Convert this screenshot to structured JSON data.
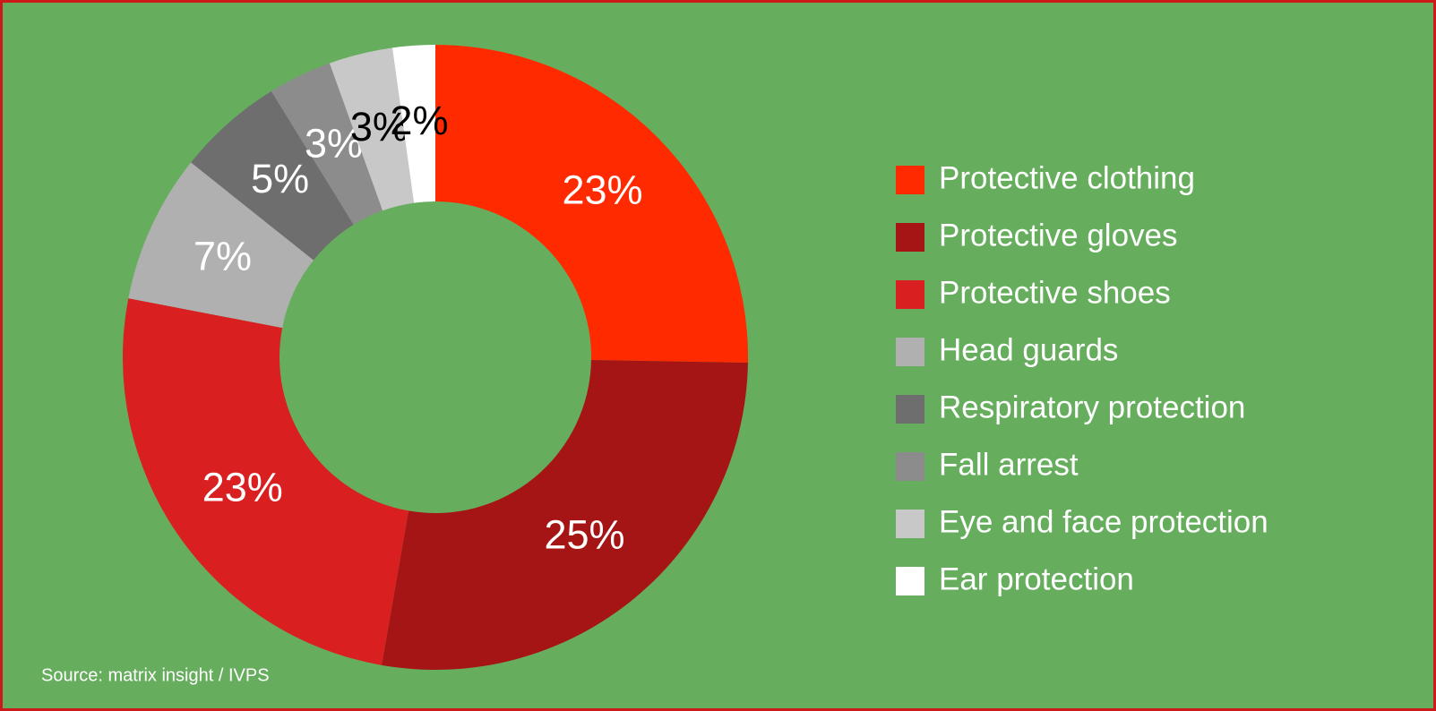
{
  "chart_data": {
    "type": "donut",
    "categories": [
      "Protective clothing",
      "Protective gloves",
      "Protective shoes",
      "Head guards",
      "Respiratory protection",
      "Fall arrest",
      "Eye and face protection",
      "Ear protection"
    ],
    "values": [
      23,
      25,
      23,
      7,
      5,
      3,
      3,
      2
    ],
    "value_labels": [
      "23%",
      "25%",
      "23%",
      "7%",
      "5%",
      "3%",
      "3%",
      "2%"
    ],
    "colors": [
      "#ff2a00",
      "#a51515",
      "#d91f1f",
      "#b0b0b0",
      "#6e6e6e",
      "#8c8c8c",
      "#c8c8c8",
      "#ffffff"
    ],
    "label_colors": [
      "#ffffff",
      "#ffffff",
      "#ffffff",
      "#ffffff",
      "#ffffff",
      "#ffffff",
      "#000000",
      "#000000"
    ],
    "source": "Source: matrix insight / IVPS",
    "legend": "right"
  }
}
